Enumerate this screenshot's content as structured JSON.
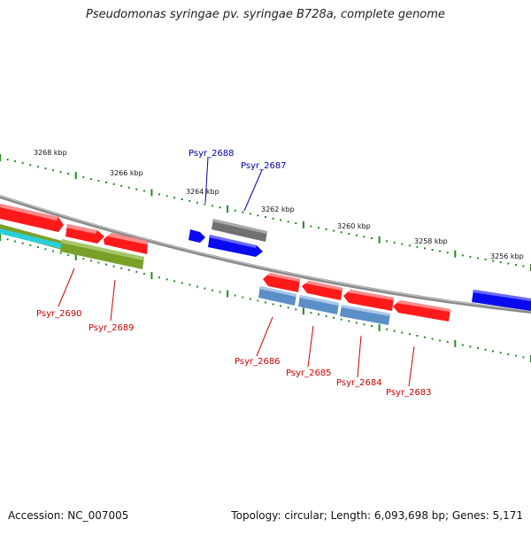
{
  "title": "Pseudomonas syringae pv. syringae B728a, complete genome",
  "footer": {
    "accession": "Accession: NC_007005",
    "summary": "Topology: circular; Length: 6,093,698 bp; Genes: 5,171"
  },
  "colors": {
    "backbone": "#8a8a8a",
    "tick": "#228b22",
    "label_forward": "#0000aa",
    "label_reverse": "#cc0000",
    "gene_red": "#ff1a1a",
    "gene_blue": "#0a0aee",
    "gene_gray": "#707070",
    "gene_steelblue": "#5b8fc7",
    "gene_olive": "#7aa028",
    "gene_cyan": "#2ad0d8"
  },
  "scale": {
    "tick_labels": [
      "3268 kbp",
      "3266 kbp",
      "3264 kbp",
      "3262 kbp",
      "3260 kbp",
      "3258 kbp",
      "3256 kbp"
    ]
  },
  "genes_forward_labels": [
    "Psyr_2688",
    "Psyr_2687"
  ],
  "genes_reverse_labels": [
    "Psyr_2690",
    "Psyr_2689",
    "Psyr_2686",
    "Psyr_2685",
    "Psyr_2684",
    "Psyr_2683"
  ]
}
